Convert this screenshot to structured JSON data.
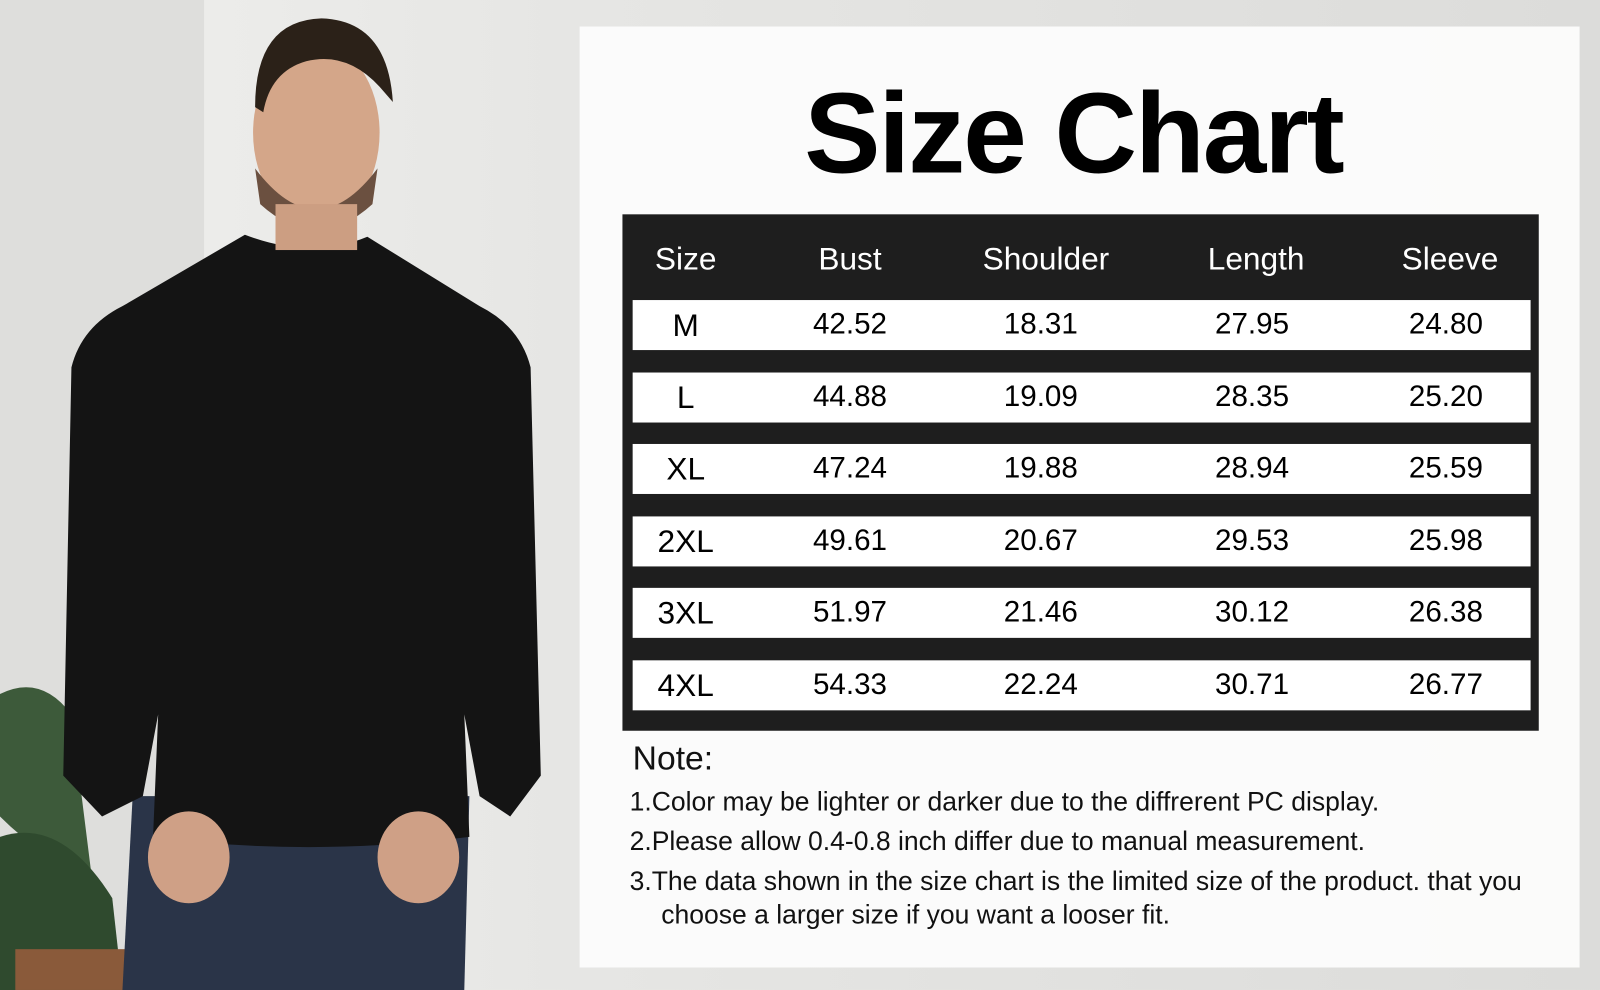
{
  "title": "Size Chart",
  "table": {
    "headers": [
      "Size",
      "Bust",
      "Shoulder",
      "Length",
      "Sleeve"
    ],
    "rows": [
      [
        "M",
        "42.52",
        "18.31",
        "27.95",
        "24.80"
      ],
      [
        "L",
        "44.88",
        "19.09",
        "28.35",
        "25.20"
      ],
      [
        "XL",
        "47.24",
        "19.88",
        "28.94",
        "25.59"
      ],
      [
        "2XL",
        "49.61",
        "20.67",
        "29.53",
        "25.98"
      ],
      [
        "3XL",
        "51.97",
        "21.46",
        "30.12",
        "26.38"
      ],
      [
        "4XL",
        "54.33",
        "22.24",
        "30.71",
        "26.77"
      ]
    ]
  },
  "notes": {
    "heading": "Note:",
    "items": [
      "1.Color may be lighter or darker due to the diffrerent PC display.",
      "2.Please allow 0.4-0.8 inch differ due to manual measurement.",
      "3.The data shown in the size chart is the limited size of the product. that you"
    ],
    "continuation": "choose a larger size if you want a looser fit."
  },
  "colors": {
    "table_bg": "#1e1e1e",
    "row_bg": "#ffffff",
    "text": "#000000"
  }
}
